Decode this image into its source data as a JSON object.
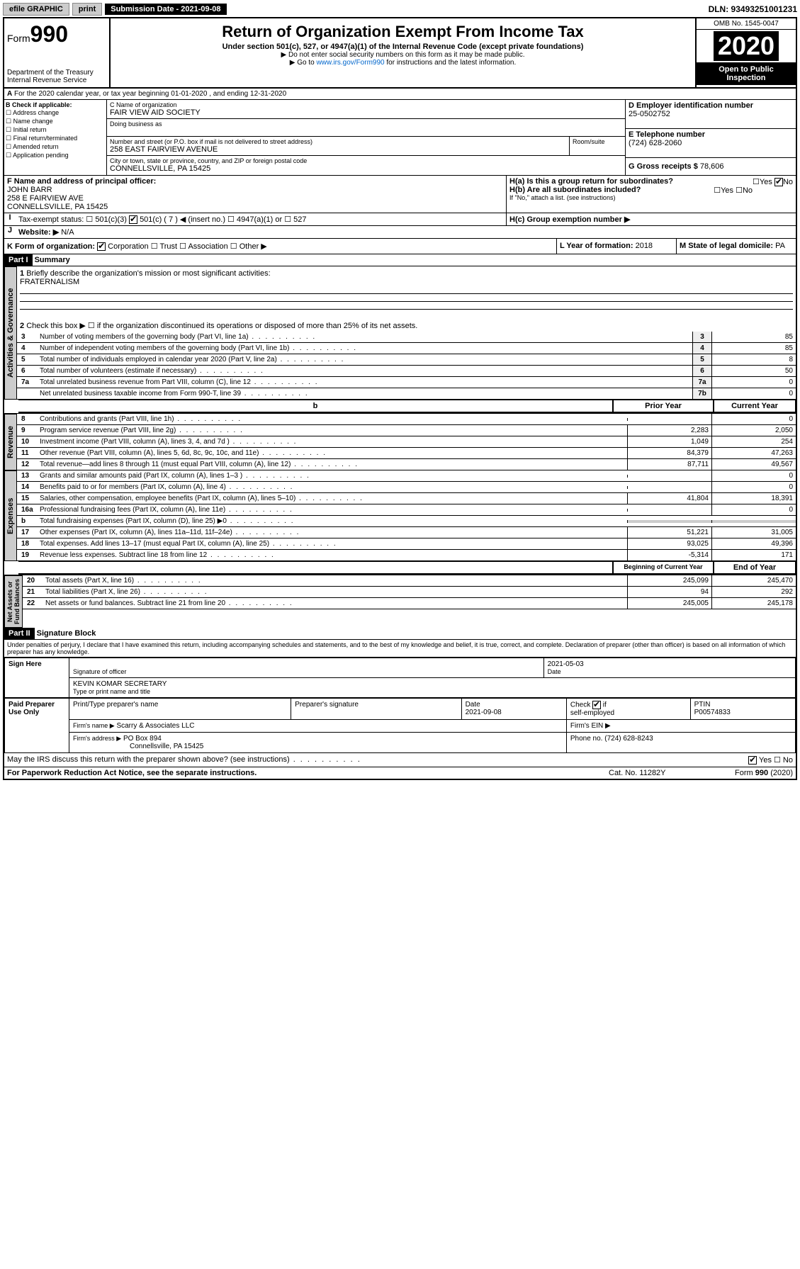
{
  "topbar": {
    "efile": "efile GRAPHIC",
    "print": "print",
    "subdate_label": "Submission Date - 2021-09-08",
    "dln": "DLN: 93493251001231"
  },
  "header": {
    "form_prefix": "Form",
    "form_no": "990",
    "dept": "Department of the Treasury\nInternal Revenue Service",
    "title": "Return of Organization Exempt From Income Tax",
    "subtitle": "Under section 501(c), 527, or 4947(a)(1) of the Internal Revenue Code (except private foundations)",
    "note1": "▶ Do not enter social security numbers on this form as it may be made public.",
    "note2": "▶ Go to www.irs.gov/Form990 for instructions and the latest information.",
    "link": "www.irs.gov/Form990",
    "omb": "OMB No. 1545-0047",
    "year": "2020",
    "open": "Open to Public Inspection"
  },
  "period": "For the 2020 calendar year, or tax year beginning 01-01-2020   , and ending 12-31-2020",
  "sectionB": {
    "title": "B Check if applicable:",
    "items": [
      "Address change",
      "Name change",
      "Initial return",
      "Final return/terminated",
      "Amended return",
      "Application pending"
    ]
  },
  "sectionC": {
    "label_name": "C Name of organization",
    "name": "FAIR VIEW AID SOCIETY",
    "dba_label": "Doing business as",
    "addr_label": "Number and street (or P.O. box if mail is not delivered to street address)",
    "room_label": "Room/suite",
    "addr": "258 EAST FAIRVIEW AVENUE",
    "city_label": "City or town, state or province, country, and ZIP or foreign postal code",
    "city": "CONNELLSVILLE, PA  15425"
  },
  "sectionD": {
    "label": "D Employer identification number",
    "ein": "25-0502752"
  },
  "sectionE": {
    "label": "E Telephone number",
    "phone": "(724) 628-2060"
  },
  "sectionG": {
    "label": "G Gross receipts $",
    "amount": "78,606"
  },
  "sectionF": {
    "label": "F  Name and address of principal officer:",
    "name": "JOHN BARR",
    "addr1": "258 E FAIRVIEW AVE",
    "addr2": "CONNELLSVILLE, PA  15425"
  },
  "sectionH": {
    "ha": "H(a)  Is this a group return for subordinates?",
    "hb": "H(b)  Are all subordinates included?",
    "hb_note": "If \"No,\" attach a list. (see instructions)",
    "hc": "H(c)  Group exemption number ▶",
    "yes": "Yes",
    "no": "No"
  },
  "sectionI": {
    "label": "Tax-exempt status:",
    "opts": [
      "501(c)(3)",
      "501(c) ( 7 ) ◀ (insert no.)",
      "4947(a)(1) or",
      "527"
    ]
  },
  "sectionJ": {
    "label": "Website: ▶",
    "val": "N/A"
  },
  "sectionK": {
    "label": "K Form of organization:",
    "opts": [
      "Corporation",
      "Trust",
      "Association",
      "Other ▶"
    ]
  },
  "sectionL": {
    "label": "L Year of formation:",
    "val": "2018"
  },
  "sectionM": {
    "label": "M State of legal domicile:",
    "val": "PA"
  },
  "part1": {
    "title": "Part I",
    "subtitle": "Summary",
    "q1": "Briefly describe the organization's mission or most significant activities:",
    "q1v": "FRATERNALISM",
    "q2": "Check this box ▶ ☐  if the organization discontinued its operations or disposed of more than 25% of its net assets.",
    "lines": [
      {
        "n": "3",
        "t": "Number of voting members of the governing body (Part VI, line 1a)",
        "bx": "3",
        "v": "85"
      },
      {
        "n": "4",
        "t": "Number of independent voting members of the governing body (Part VI, line 1b)",
        "bx": "4",
        "v": "85"
      },
      {
        "n": "5",
        "t": "Total number of individuals employed in calendar year 2020 (Part V, line 2a)",
        "bx": "5",
        "v": "8"
      },
      {
        "n": "6",
        "t": "Total number of volunteers (estimate if necessary)",
        "bx": "6",
        "v": "50"
      },
      {
        "n": "7a",
        "t": "Total unrelated business revenue from Part VIII, column (C), line 12",
        "bx": "7a",
        "v": "0"
      },
      {
        "n": "",
        "t": "Net unrelated business taxable income from Form 990-T, line 39",
        "bx": "7b",
        "v": "0"
      }
    ],
    "col_prior": "Prior Year",
    "col_curr": "Current Year",
    "rev": [
      {
        "n": "8",
        "t": "Contributions and grants (Part VIII, line 1h)",
        "p": "",
        "c": "0"
      },
      {
        "n": "9",
        "t": "Program service revenue (Part VIII, line 2g)",
        "p": "2,283",
        "c": "2,050"
      },
      {
        "n": "10",
        "t": "Investment income (Part VIII, column (A), lines 3, 4, and 7d )",
        "p": "1,049",
        "c": "254"
      },
      {
        "n": "11",
        "t": "Other revenue (Part VIII, column (A), lines 5, 6d, 8c, 9c, 10c, and 11e)",
        "p": "84,379",
        "c": "47,263"
      },
      {
        "n": "12",
        "t": "Total revenue—add lines 8 through 11 (must equal Part VIII, column (A), line 12)",
        "p": "87,711",
        "c": "49,567"
      }
    ],
    "exp": [
      {
        "n": "13",
        "t": "Grants and similar amounts paid (Part IX, column (A), lines 1–3 )",
        "p": "",
        "c": "0"
      },
      {
        "n": "14",
        "t": "Benefits paid to or for members (Part IX, column (A), line 4)",
        "p": "",
        "c": "0"
      },
      {
        "n": "15",
        "t": "Salaries, other compensation, employee benefits (Part IX, column (A), lines 5–10)",
        "p": "41,804",
        "c": "18,391"
      },
      {
        "n": "16a",
        "t": "Professional fundraising fees (Part IX, column (A), line 11e)",
        "p": "",
        "c": "0"
      },
      {
        "n": "b",
        "t": "Total fundraising expenses (Part IX, column (D), line 25) ▶0",
        "p": "",
        "c": "",
        "shade": true
      },
      {
        "n": "17",
        "t": "Other expenses (Part IX, column (A), lines 11a–11d, 11f–24e)",
        "p": "51,221",
        "c": "31,005"
      },
      {
        "n": "18",
        "t": "Total expenses. Add lines 13–17 (must equal Part IX, column (A), line 25)",
        "p": "93,025",
        "c": "49,396"
      },
      {
        "n": "19",
        "t": "Revenue less expenses. Subtract line 18 from line 12",
        "p": "-5,314",
        "c": "171"
      }
    ],
    "col_beg": "Beginning of Current Year",
    "col_end": "End of Year",
    "net": [
      {
        "n": "20",
        "t": "Total assets (Part X, line 16)",
        "p": "245,099",
        "c": "245,470"
      },
      {
        "n": "21",
        "t": "Total liabilities (Part X, line 26)",
        "p": "94",
        "c": "292"
      },
      {
        "n": "22",
        "t": "Net assets or fund balances. Subtract line 21 from line 20",
        "p": "245,005",
        "c": "245,178"
      }
    ],
    "vtabs": {
      "gov": "Activities & Governance",
      "rev": "Revenue",
      "exp": "Expenses",
      "net": "Net Assets or\nFund Balances"
    }
  },
  "part2": {
    "title": "Part II",
    "subtitle": "Signature Block",
    "perjury": "Under penalties of perjury, I declare that I have examined this return, including accompanying schedules and statements, and to the best of my knowledge and belief, it is true, correct, and complete. Declaration of preparer (other than officer) is based on all information of which preparer has any knowledge.",
    "sign_here": "Sign Here",
    "sig_officer": "Signature of officer",
    "date": "2021-05-03",
    "date_lbl": "Date",
    "officer": "KEVIN KOMAR  SECRETARY",
    "name_title": "Type or print name and title",
    "paid": "Paid Preparer Use Only",
    "cols": {
      "prep_name": "Print/Type preparer's name",
      "prep_sig": "Preparer's signature",
      "prep_date": "Date",
      "check_self": "Check ☑ if self-employed",
      "ptin": "PTIN"
    },
    "prep_date_val": "2021-09-08",
    "ptin_val": "P00574833",
    "firm_name_lbl": "Firm's name   ▶",
    "firm_name": "Scarry & Associates LLC",
    "firm_ein_lbl": "Firm's EIN ▶",
    "firm_addr_lbl": "Firm's address ▶",
    "firm_addr": "PO Box 894",
    "firm_city": "Connellsville, PA  15425",
    "phone_lbl": "Phone no.",
    "phone": "(724) 628-8243",
    "discuss": "May the IRS discuss this return with the preparer shown above? (see instructions)",
    "paperwork": "For Paperwork Reduction Act Notice, see the separate instructions.",
    "cat": "Cat. No. 11282Y",
    "formv": "Form 990 (2020)"
  }
}
